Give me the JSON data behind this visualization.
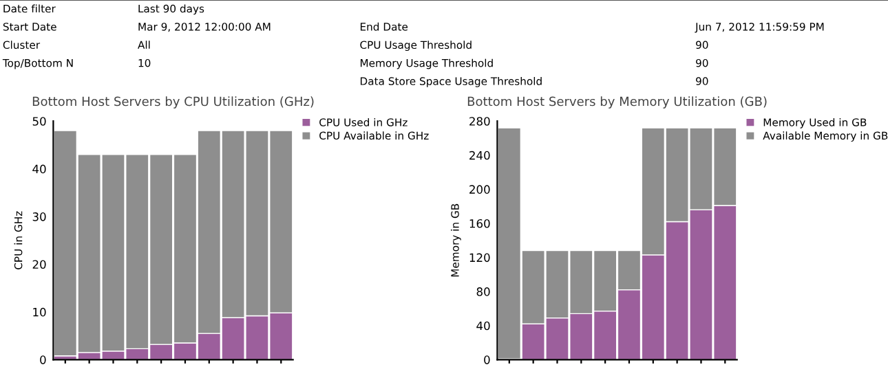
{
  "chart_data": [
    {
      "type": "other",
      "annotations": [
        "Date filter",
        "Last 90 days",
        "Start Date",
        "Mar 9, 2012 12:00:00 AM",
        "End Date",
        "Jun 7, 2012 11:59:59 PM",
        "Cluster",
        "All",
        "CPU Usage Threshold",
        "90",
        "Top/Bottom N",
        "10",
        "Memory Usage Threshold",
        "90",
        "Data Store Space Usage Threshold",
        "90"
      ]
    },
    {
      "type": "bar",
      "stacked": true,
      "title": "Bottom Host Servers by CPU Utilization (GHz)",
      "ylabel": "CPU in GHz",
      "categories": [
        null,
        null,
        null,
        null,
        null,
        null,
        null,
        null,
        null,
        null
      ],
      "ylim": [
        0,
        50
      ],
      "yticks": [
        0,
        10,
        20,
        30,
        40,
        50
      ],
      "grid": false,
      "legend": "top right",
      "series": [
        {
          "name": "CPU Used in GHz",
          "color": "#9c5f9c",
          "values": [
            0.8,
            1.5,
            1.8,
            2.3,
            3.2,
            3.5,
            5.5,
            8.8,
            9.2,
            9.8
          ]
        },
        {
          "name": "CPU Available in GHz",
          "color": "#8e8e8e",
          "values": [
            47.2,
            41.5,
            41.2,
            40.7,
            39.8,
            39.5,
            42.5,
            39.2,
            38.8,
            38.2
          ]
        }
      ]
    },
    {
      "type": "bar",
      "stacked": true,
      "title": "Bottom Host Servers by Memory Utilization (GB)",
      "ylabel": "Memory in GB",
      "categories": [
        null,
        null,
        null,
        null,
        null,
        null,
        null,
        null,
        null,
        null
      ],
      "ylim": [
        0,
        280
      ],
      "yticks": [
        0,
        40,
        80,
        120,
        160,
        200,
        240,
        280
      ],
      "grid": false,
      "legend": "top right",
      "series": [
        {
          "name": "Memory Used in GB",
          "color": "#9c5f9c",
          "values": [
            1,
            42,
            49,
            54,
            57,
            82,
            123,
            162,
            176,
            181
          ]
        },
        {
          "name": "Available Memory in GB",
          "color": "#8e8e8e",
          "values": [
            271,
            86,
            79,
            74,
            71,
            46,
            149,
            110,
            96,
            91
          ]
        }
      ]
    }
  ]
}
